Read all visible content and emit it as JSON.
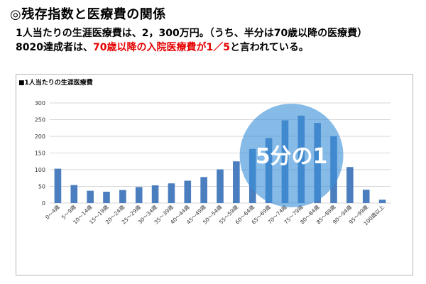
{
  "header": {
    "title": "◎残存指数と医療費の関係",
    "line1": "1人当たりの生涯医療費は、2，300万円。（うち、半分は70歳以降の医療費）",
    "line2_prefix": "8020達成者は、",
    "line2_highlight": "70歳以降の入院医療費が1／5",
    "line2_suffix": "と言われている。"
  },
  "colors": {
    "bar": "#4a7ebf",
    "highlight_text": "#e60000",
    "circle": "#3b8fd9",
    "grid": "#c8c8c8"
  },
  "chart_data": {
    "type": "bar",
    "title": "■1人当たりの生涯医療費",
    "categories": [
      "0～4歳",
      "5～9歳",
      "10～14歳",
      "15～19歳",
      "20～24歳",
      "25～29歳",
      "30～34歳",
      "35～39歳",
      "40～44歳",
      "45～49歳",
      "50～54歳",
      "55～59歳",
      "60～64歳",
      "65～69歳",
      "70～74歳",
      "75～79歳",
      "80～84歳",
      "85～89歳",
      "90～94歳",
      "95～99歳",
      "100歳以上"
    ],
    "values": [
      103,
      54,
      37,
      34,
      39,
      48,
      53,
      59,
      67,
      78,
      101,
      125,
      162,
      195,
      248,
      262,
      240,
      200,
      108,
      40,
      10
    ],
    "ylim": [
      0,
      300
    ],
    "yticks": [
      0,
      50,
      100,
      150,
      200,
      250,
      300
    ],
    "grid": true,
    "annotation": "5分の1"
  }
}
